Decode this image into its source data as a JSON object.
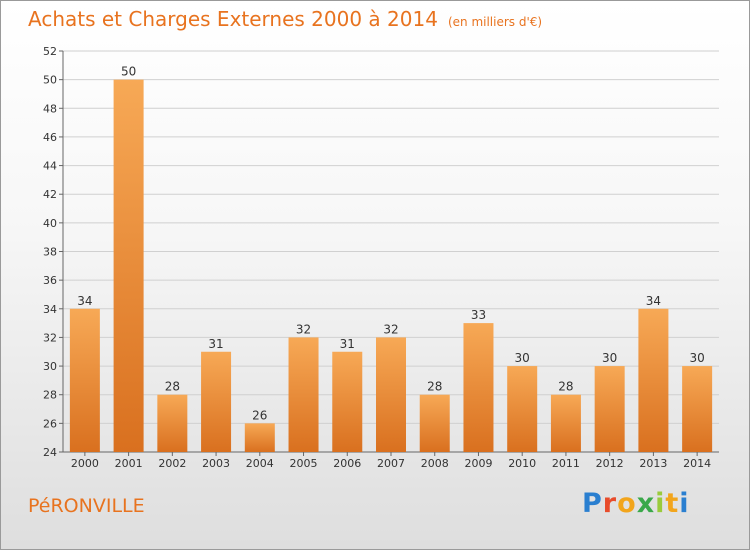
{
  "header": {
    "title": "Achats et Charges Externes 2000 à 2014",
    "subtitle": "(en milliers d'€)"
  },
  "footer": {
    "commune": "PéRONVILLE",
    "logo_text": "Proxiti"
  },
  "colors": {
    "accent": "#e8731f",
    "bar_top": "#f7a956",
    "bar_bottom": "#d9701f",
    "grid": "#d0d0d0"
  },
  "chart_data": {
    "type": "bar",
    "categories": [
      "2000",
      "2001",
      "2002",
      "2003",
      "2004",
      "2005",
      "2006",
      "2007",
      "2008",
      "2009",
      "2010",
      "2011",
      "2012",
      "2013",
      "2014"
    ],
    "values": [
      34,
      50,
      28,
      31,
      26,
      32,
      31,
      32,
      28,
      33,
      30,
      28,
      30,
      34,
      30
    ],
    "title": "Achats et Charges Externes 2000 à 2014",
    "subtitle": "(en milliers d'€)",
    "ylim": [
      24,
      52
    ],
    "yticks": [
      24,
      26,
      28,
      30,
      32,
      34,
      36,
      38,
      40,
      42,
      44,
      46,
      48,
      50,
      52
    ],
    "grid": true,
    "data_labels": true,
    "legend": "none"
  }
}
